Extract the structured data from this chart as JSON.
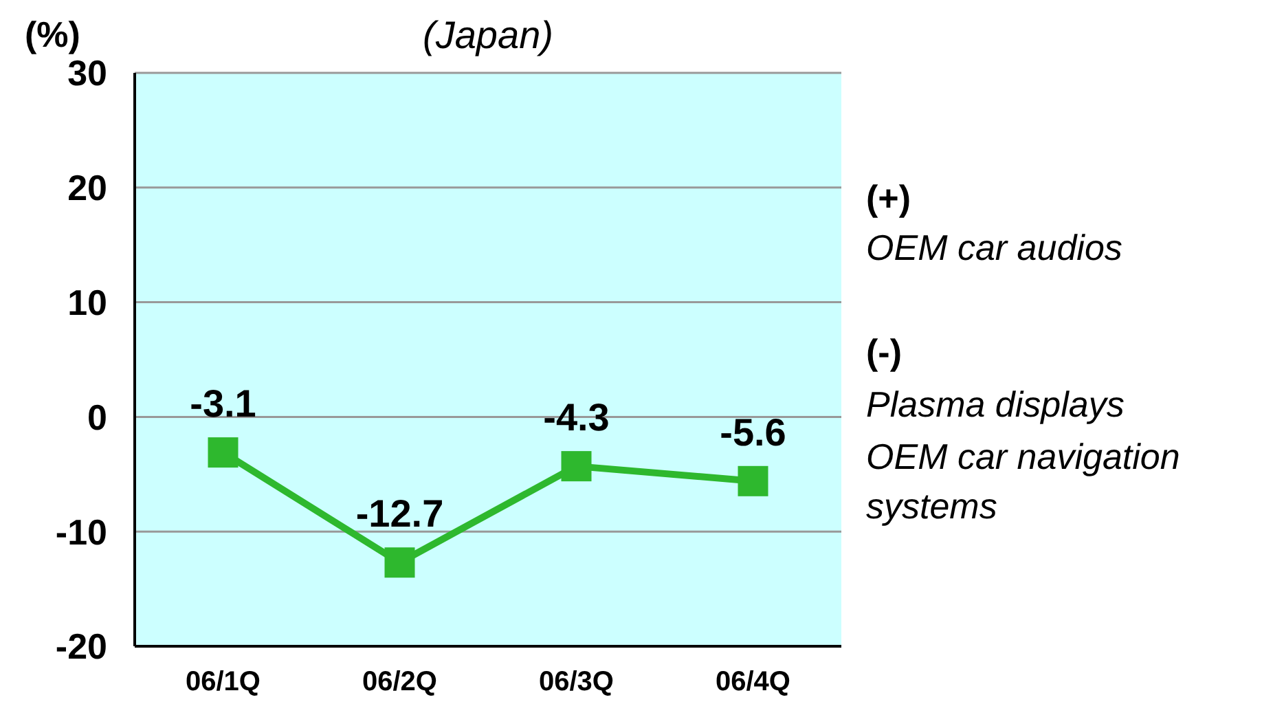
{
  "chart_data": {
    "type": "line",
    "title": "(Japan)",
    "ylabel": "(%)",
    "categories": [
      "06/1Q",
      "06/2Q",
      "06/3Q",
      "06/4Q"
    ],
    "series": [
      {
        "color": "#2eb82e",
        "values": [
          -3.1,
          -12.7,
          -4.3,
          -5.6
        ]
      }
    ],
    "ylim": [
      -20,
      30
    ],
    "yticks": [
      -20,
      -10,
      0,
      10,
      20,
      30
    ],
    "grid": "y",
    "marker": "square",
    "data_labels": true,
    "annotations": [
      "(+)",
      "OEM car audios",
      "(-)",
      "Plasma displays",
      "OEM car navigation systems"
    ]
  }
}
